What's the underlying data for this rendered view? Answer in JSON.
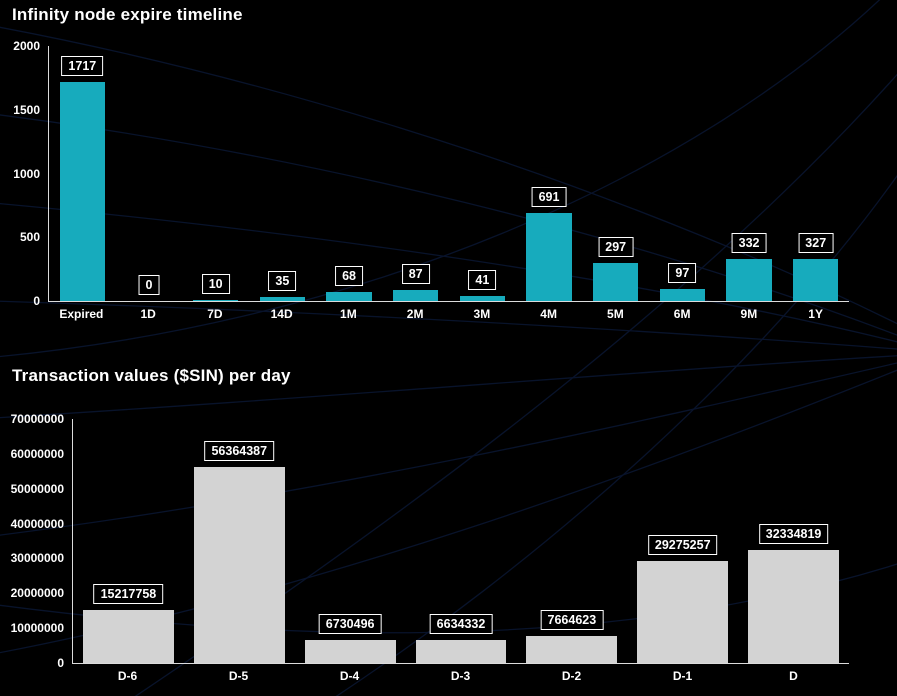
{
  "page": {
    "background_color": "#000000",
    "accent_curve_color": "#10234f"
  },
  "chart_data": [
    {
      "type": "bar",
      "title": "Infinity node expire timeline",
      "categories": [
        "Expired",
        "1D",
        "7D",
        "14D",
        "1M",
        "2M",
        "3M",
        "4M",
        "5M",
        "6M",
        "9M",
        "1Y"
      ],
      "values": [
        1717,
        0,
        10,
        35,
        68,
        87,
        41,
        691,
        297,
        97,
        332,
        327
      ],
      "xlabel": "",
      "ylabel": "",
      "ylim": [
        0,
        2000
      ],
      "yticks": [
        0,
        500,
        1000,
        1500,
        2000
      ],
      "bar_color": "#17abbd",
      "grid": false,
      "legend": "none",
      "value_labels": "boxed above each bar"
    },
    {
      "type": "bar",
      "title": "Transaction values ($SIN) per day",
      "categories": [
        "D-6",
        "D-5",
        "D-4",
        "D-3",
        "D-2",
        "D-1",
        "D"
      ],
      "values": [
        15217758,
        56364387,
        6730496,
        6634332,
        7664623,
        29275257,
        32334819
      ],
      "xlabel": "",
      "ylabel": "",
      "ylim": [
        0,
        70000000
      ],
      "yticks": [
        0,
        10000000,
        20000000,
        30000000,
        40000000,
        50000000,
        60000000,
        70000000
      ],
      "bar_color": "#d3d3d3",
      "grid": false,
      "legend": "none",
      "value_labels": "boxed above each bar"
    }
  ]
}
